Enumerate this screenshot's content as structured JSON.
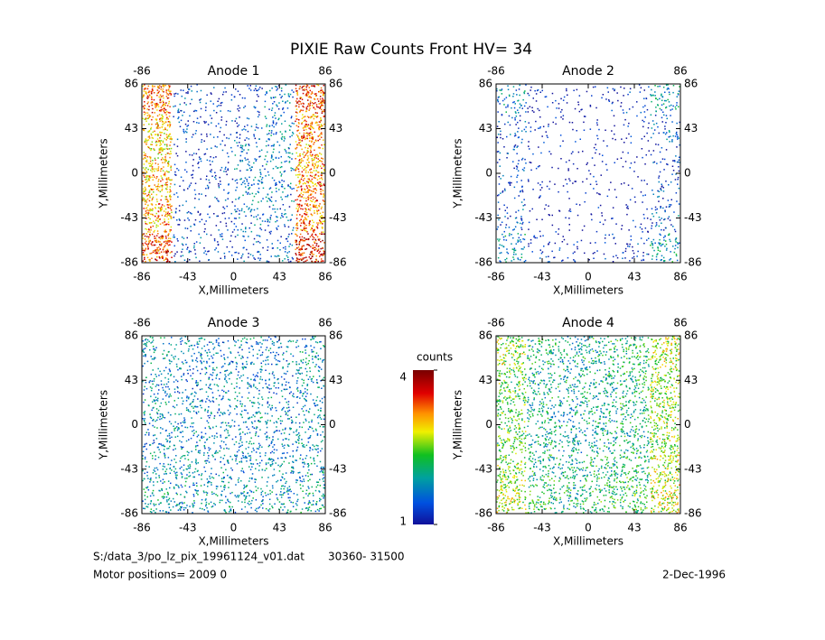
{
  "title": "PIXIE Raw Counts Front HV= 34",
  "colorbar": {
    "label": "counts",
    "lim": [
      1,
      4
    ],
    "ticks": [
      1,
      4
    ]
  },
  "footer": {
    "file": "S:/data_3/po_lz_pix_19961124_v01.dat",
    "range": "30360- 31500",
    "motor": "Motor positions= 2009 0",
    "date": "2-Dec-1996"
  },
  "chart_data": [
    {
      "type": "heatmap",
      "title": "Anode 1",
      "xlabel": "X,Millimeters",
      "ylabel": "Y,Millimeters",
      "xlim": [
        -86,
        86
      ],
      "ylim": [
        -86,
        86
      ],
      "xticks": [
        -86,
        -43,
        0,
        43,
        86
      ],
      "yticks": [
        -86,
        -43,
        0,
        43,
        86
      ],
      "z": [
        [
          3.3,
          1.4,
          1.2,
          1.3,
          1.6,
          3.4
        ],
        [
          3.0,
          1.3,
          1.2,
          1.4,
          1.7,
          3.2
        ],
        [
          2.9,
          1.2,
          1.3,
          1.6,
          1.7,
          3.1
        ],
        [
          3.0,
          1.2,
          1.3,
          1.7,
          1.6,
          3.2
        ],
        [
          3.1,
          1.3,
          1.2,
          1.6,
          1.5,
          3.2
        ],
        [
          3.4,
          1.4,
          1.3,
          1.4,
          1.5,
          3.5
        ]
      ]
    },
    {
      "type": "heatmap",
      "title": "Anode 2",
      "xlabel": "X,Millimeters",
      "ylabel": "Y,Millimeters",
      "xlim": [
        -86,
        86
      ],
      "ylim": [
        -86,
        86
      ],
      "xticks": [
        -86,
        -43,
        0,
        43,
        86
      ],
      "yticks": [
        -86,
        -43,
        0,
        43,
        86
      ],
      "z": [
        [
          1.7,
          1.2,
          1.1,
          1.1,
          1.2,
          1.8
        ],
        [
          1.4,
          1.1,
          1.0,
          1.0,
          1.1,
          1.5
        ],
        [
          1.3,
          1.0,
          1.0,
          1.0,
          1.0,
          1.3
        ],
        [
          1.3,
          1.0,
          1.0,
          1.0,
          1.0,
          1.3
        ],
        [
          1.4,
          1.0,
          1.0,
          1.0,
          1.1,
          1.5
        ],
        [
          1.8,
          1.2,
          1.1,
          1.1,
          1.3,
          1.9
        ]
      ]
    },
    {
      "type": "heatmap",
      "title": "Anode 3",
      "xlabel": "X,Millimeters",
      "ylabel": "Y,Millimeters",
      "xlim": [
        -86,
        86
      ],
      "ylim": [
        -86,
        86
      ],
      "xticks": [
        -86,
        -43,
        0,
        43,
        86
      ],
      "yticks": [
        -86,
        -43,
        0,
        43,
        86
      ],
      "z": [
        [
          1.8,
          1.7,
          1.6,
          1.7,
          1.7,
          1.8
        ],
        [
          1.7,
          1.6,
          1.7,
          1.7,
          1.6,
          1.8
        ],
        [
          1.8,
          1.7,
          1.6,
          1.8,
          1.7,
          1.7
        ],
        [
          1.7,
          1.7,
          1.7,
          1.7,
          1.7,
          1.8
        ],
        [
          1.8,
          1.8,
          1.7,
          1.7,
          1.8,
          1.8
        ],
        [
          1.9,
          1.8,
          1.8,
          1.8,
          1.8,
          1.9
        ]
      ]
    },
    {
      "type": "heatmap",
      "title": "Anode 4",
      "xlabel": "X,Millimeters",
      "ylabel": "Y,Millimeters",
      "xlim": [
        -86,
        86
      ],
      "ylim": [
        -86,
        86
      ],
      "xticks": [
        -86,
        -43,
        0,
        43,
        86
      ],
      "yticks": [
        -86,
        -43,
        0,
        43,
        86
      ],
      "z": [
        [
          2.6,
          2.1,
          2.0,
          2.1,
          2.2,
          2.7
        ],
        [
          2.4,
          2.0,
          2.0,
          2.0,
          2.1,
          2.6
        ],
        [
          2.4,
          2.0,
          1.9,
          2.0,
          2.1,
          2.6
        ],
        [
          2.4,
          2.0,
          1.9,
          2.0,
          2.1,
          2.6
        ],
        [
          2.5,
          2.1,
          2.0,
          2.1,
          2.2,
          2.7
        ],
        [
          2.7,
          2.2,
          2.1,
          2.2,
          2.3,
          2.8
        ]
      ]
    }
  ]
}
